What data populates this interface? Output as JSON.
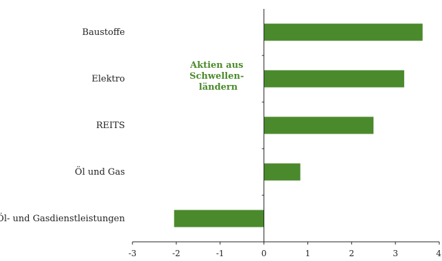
{
  "chart_data": {
    "type": "bar",
    "orientation": "horizontal",
    "categories": [
      "Baustoffe",
      "Elektro",
      "REITS",
      "Öl und Gas",
      "Öl- und Gasdienstleistungen"
    ],
    "values": [
      3.62,
      3.2,
      2.5,
      0.83,
      -2.05
    ],
    "xlim": [
      -3,
      4
    ],
    "xticks": [
      -3,
      -2,
      -1,
      0,
      1,
      2,
      3,
      4
    ],
    "title": "",
    "xlabel": "",
    "ylabel": "",
    "grid": false,
    "bar_color": "#4a8a2c",
    "annotation": {
      "lines": [
        "Aktien aus",
        "Schwellen-",
        "ländern"
      ],
      "color": "#4a8a2c",
      "placement": "upper-middle"
    }
  }
}
